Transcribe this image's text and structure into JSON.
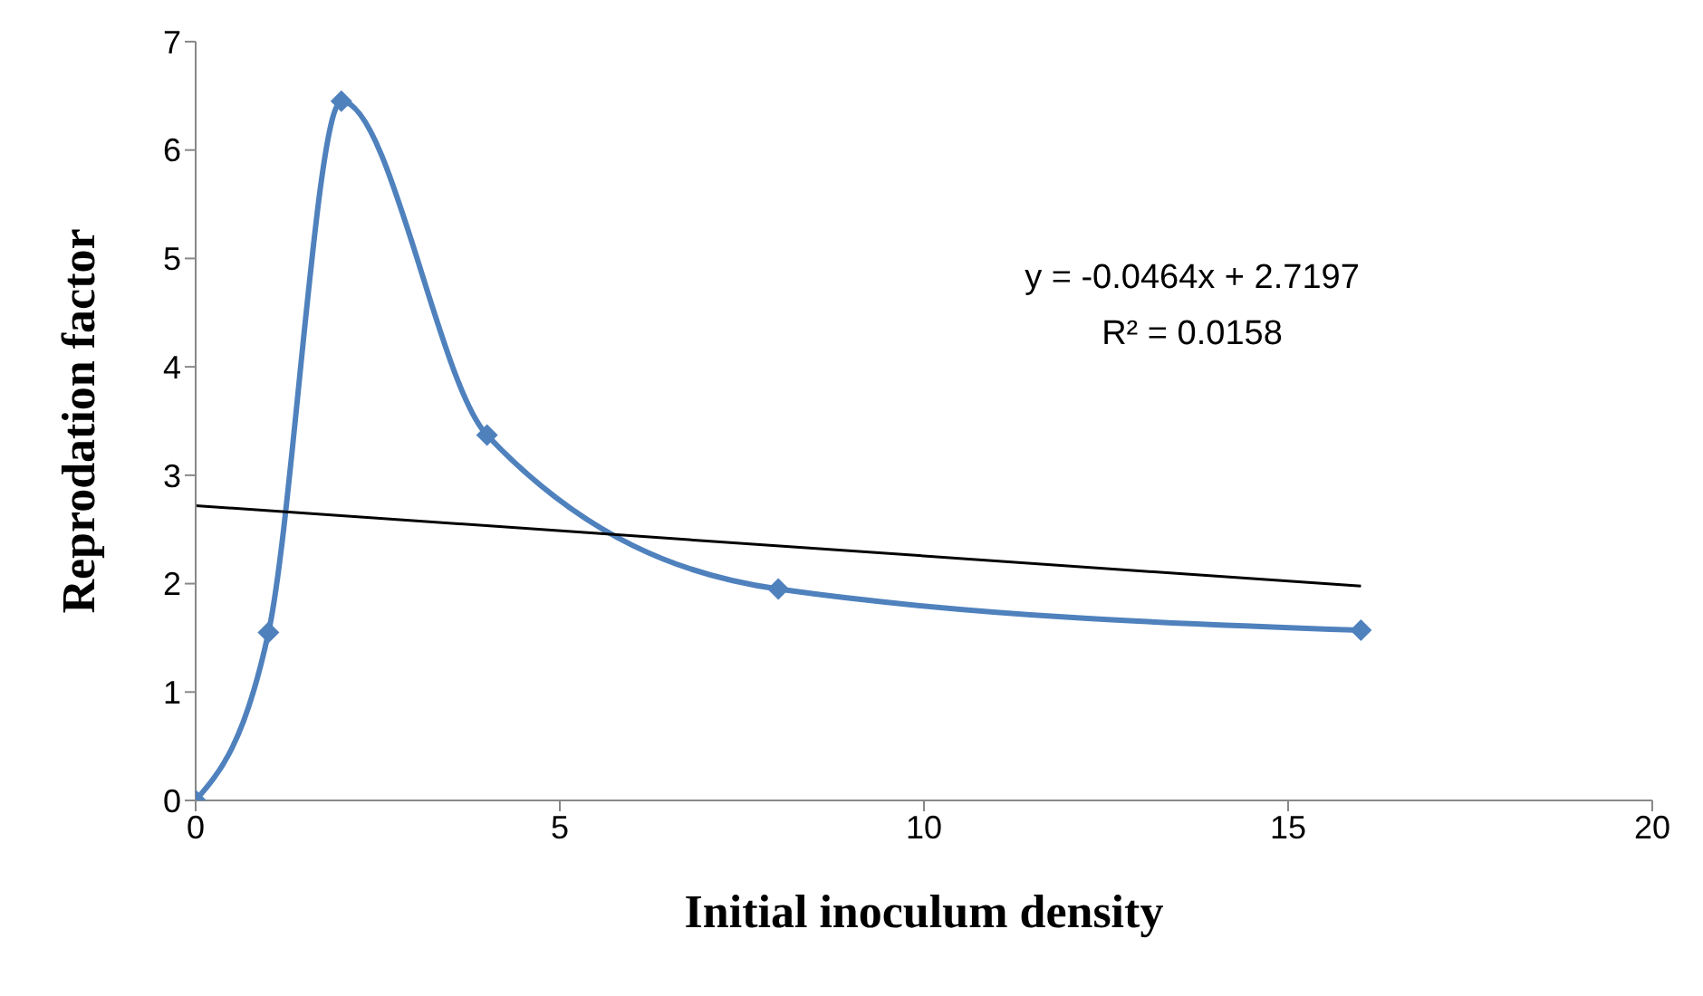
{
  "chart_data": {
    "type": "line",
    "xlabel": "Initial inoculum density",
    "ylabel": "Reprodation factor",
    "xlim": [
      0,
      20
    ],
    "xticks": [
      0,
      5,
      10,
      15,
      20
    ],
    "ylim": [
      0,
      7
    ],
    "yticks": [
      0,
      1,
      2,
      3,
      4,
      5,
      6,
      7
    ],
    "grid": false,
    "legend": false,
    "series": [
      {
        "color": "#4f81bd",
        "x": [
          0,
          1,
          2,
          4,
          8,
          16
        ],
        "values": [
          0,
          1.55,
          6.45,
          3.37,
          1.95,
          1.57
        ],
        "marker": "diamond"
      },
      {
        "color": "#000000",
        "x": [
          0,
          16
        ],
        "values": [
          2.7197,
          1.977
        ],
        "marker": "none"
      }
    ],
    "annotations": [
      "y = -0.0464x + 2.7197",
      "R² = 0.0158"
    ]
  }
}
